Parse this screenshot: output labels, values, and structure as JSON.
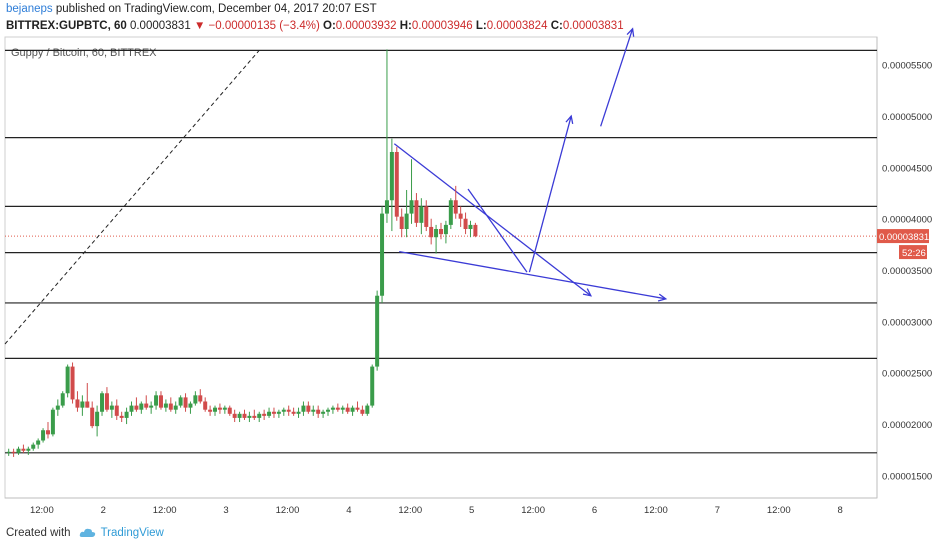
{
  "header": {
    "author": "bejaneps",
    "published_text": "published on TradingView.com, December 04, 2017 20:07 EST",
    "symbol_line": "BITTREX:GUPBTC, 60",
    "last_price": "0.00003831",
    "change": "−0.00000135 (−3.4%)",
    "o_label": "O:",
    "o_value": "0.00003932",
    "h_label": "H:",
    "h_value": "0.00003946",
    "l_label": "L:",
    "l_value": "0.00003824",
    "c_label": "C:",
    "c_value": "0.00003831"
  },
  "chart_title": "Guppy / Bitcoin, 60, BITTREX",
  "footer": {
    "created_with": "Created with",
    "brand": "TradingView"
  },
  "colors": {
    "up": "#3a9c4a",
    "down": "#d14b4b",
    "draw": "#3b3bd6",
    "line": "#222222",
    "price_tag": "#e05a4a",
    "countdown_tag": "#e05a4a"
  },
  "chart_data": {
    "type": "candlestick",
    "title": "Guppy / Bitcoin, 60, BITTREX",
    "x_tick_labels": [
      "12:00",
      "2",
      "12:00",
      "3",
      "12:00",
      "4",
      "12:00",
      "5",
      "12:00",
      "6",
      "12:00",
      "7",
      "12:00",
      "8"
    ],
    "y_tick_labels": [
      "0.00001500",
      "0.00002000",
      "0.00002500",
      "0.00003000",
      "0.00003500",
      "0.00004000",
      "0.00004500",
      "0.00005000",
      "0.00005500"
    ],
    "y_range": [
      1.28e-05,
      5.77e-05
    ],
    "x_range_days": [
      1.2,
      8.3
    ],
    "current_price_label": "0.00003831",
    "countdown_label": "52:26",
    "horizontal_levels": [
      1.72e-05,
      2.64e-05,
      3.18e-05,
      3.67e-05,
      4.12e-05,
      4.79e-05,
      5.64e-05
    ],
    "candles": [
      [
        1.23,
        1.73e-05,
        1.76e-05,
        1.69e-05,
        1.73e-05
      ],
      [
        1.27,
        1.73e-05,
        1.76e-05,
        1.68e-05,
        1.72e-05
      ],
      [
        1.31,
        1.72e-05,
        1.78e-05,
        1.7e-05,
        1.76e-05
      ],
      [
        1.35,
        1.76e-05,
        1.8e-05,
        1.72e-05,
        1.74e-05
      ],
      [
        1.39,
        1.74e-05,
        1.78e-05,
        1.7e-05,
        1.76e-05
      ],
      [
        1.43,
        1.76e-05,
        1.82e-05,
        1.74e-05,
        1.8e-05
      ],
      [
        1.47,
        1.8e-05,
        1.86e-05,
        1.76e-05,
        1.84e-05
      ],
      [
        1.51,
        1.84e-05,
        1.96e-05,
        1.82e-05,
        1.94e-05
      ],
      [
        1.55,
        1.94e-05,
        2.02e-05,
        1.86e-05,
        1.9e-05
      ],
      [
        1.59,
        1.9e-05,
        2.16e-05,
        1.88e-05,
        2.14e-05
      ],
      [
        1.63,
        2.14e-05,
        2.24e-05,
        2.08e-05,
        2.18e-05
      ],
      [
        1.67,
        2.18e-05,
        2.32e-05,
        2.16e-05,
        2.3e-05
      ],
      [
        1.71,
        2.3e-05,
        2.58e-05,
        2.26e-05,
        2.56e-05
      ],
      [
        1.75,
        2.56e-05,
        2.6e-05,
        2.2e-05,
        2.24e-05
      ],
      [
        1.79,
        2.24e-05,
        2.32e-05,
        2.12e-05,
        2.16e-05
      ],
      [
        1.83,
        2.16e-05,
        2.28e-05,
        2.08e-05,
        2.22e-05
      ],
      [
        1.87,
        2.22e-05,
        2.4e-05,
        2.16e-05,
        2.16e-05
      ],
      [
        1.91,
        2.16e-05,
        2.22e-05,
        1.96e-05,
        1.98e-05
      ],
      [
        1.95,
        1.98e-05,
        2.18e-05,
        1.88e-05,
        2.12e-05
      ],
      [
        1.99,
        2.12e-05,
        2.32e-05,
        2.08e-05,
        2.3e-05
      ],
      [
        2.03,
        2.3e-05,
        2.36e-05,
        2.12e-05,
        2.14e-05
      ],
      [
        2.07,
        2.14e-05,
        2.22e-05,
        2.06e-05,
        2.18e-05
      ],
      [
        2.11,
        2.18e-05,
        2.24e-05,
        2.04e-05,
        2.08e-05
      ],
      [
        2.15,
        2.08e-05,
        2.12e-05,
        2.02e-05,
        2.06e-05
      ],
      [
        2.19,
        2.06e-05,
        2.16e-05,
        2e-05,
        2.12e-05
      ],
      [
        2.23,
        2.12e-05,
        2.22e-05,
        2.08e-05,
        2.18e-05
      ],
      [
        2.27,
        2.18e-05,
        2.26e-05,
        2.12e-05,
        2.14e-05
      ],
      [
        2.31,
        2.14e-05,
        2.22e-05,
        2.1e-05,
        2.2e-05
      ],
      [
        2.35,
        2.2e-05,
        2.28e-05,
        2.14e-05,
        2.16e-05
      ],
      [
        2.39,
        2.16e-05,
        2.22e-05,
        2.1e-05,
        2.18e-05
      ],
      [
        2.43,
        2.18e-05,
        2.32e-05,
        2.14e-05,
        2.28e-05
      ],
      [
        2.47,
        2.28e-05,
        2.32e-05,
        2.14e-05,
        2.16e-05
      ],
      [
        2.51,
        2.16e-05,
        2.24e-05,
        2.12e-05,
        2.2e-05
      ],
      [
        2.55,
        2.2e-05,
        2.26e-05,
        2.12e-05,
        2.14e-05
      ],
      [
        2.59,
        2.14e-05,
        2.22e-05,
        2.1e-05,
        2.18e-05
      ],
      [
        2.63,
        2.18e-05,
        2.28e-05,
        2.16e-05,
        2.26e-05
      ],
      [
        2.67,
        2.26e-05,
        2.3e-05,
        2.12e-05,
        2.16e-05
      ],
      [
        2.71,
        2.16e-05,
        2.22e-05,
        2.1e-05,
        2.2e-05
      ],
      [
        2.75,
        2.2e-05,
        2.32e-05,
        2.18e-05,
        2.28e-05
      ],
      [
        2.79,
        2.28e-05,
        2.34e-05,
        2.2e-05,
        2.22e-05
      ],
      [
        2.83,
        2.22e-05,
        2.26e-05,
        2.12e-05,
        2.14e-05
      ],
      [
        2.87,
        2.14e-05,
        2.18e-05,
        2.08e-05,
        2.12e-05
      ],
      [
        2.91,
        2.12e-05,
        2.18e-05,
        2.08e-05,
        2.16e-05
      ],
      [
        2.95,
        2.16e-05,
        2.2e-05,
        2.1e-05,
        2.14e-05
      ],
      [
        2.99,
        2.14e-05,
        2.18e-05,
        2.1e-05,
        2.16e-05
      ],
      [
        3.03,
        2.16e-05,
        2.18e-05,
        2.08e-05,
        2.1e-05
      ],
      [
        3.07,
        2.1e-05,
        2.14e-05,
        2.02e-05,
        2.06e-05
      ],
      [
        3.11,
        2.06e-05,
        2.12e-05,
        2.02e-05,
        2.1e-05
      ],
      [
        3.15,
        2.1e-05,
        2.14e-05,
        2.04e-05,
        2.06e-05
      ],
      [
        3.19,
        2.06e-05,
        2.12e-05,
        2.02e-05,
        2.08e-05
      ],
      [
        3.23,
        2.08e-05,
        2.14e-05,
        2.04e-05,
        2.06e-05
      ],
      [
        3.27,
        2.06e-05,
        2.12e-05,
        2.02e-05,
        2.1e-05
      ],
      [
        3.31,
        2.1e-05,
        2.14e-05,
        2.04e-05,
        2.08e-05
      ],
      [
        3.35,
        2.08e-05,
        2.16e-05,
        2.06e-05,
        2.12e-05
      ],
      [
        3.39,
        2.12e-05,
        2.16e-05,
        2.06e-05,
        2.1e-05
      ],
      [
        3.43,
        2.1e-05,
        2.14e-05,
        2.06e-05,
        2.12e-05
      ],
      [
        3.47,
        2.12e-05,
        2.16e-05,
        2.08e-05,
        2.14e-05
      ],
      [
        3.51,
        2.14e-05,
        2.18e-05,
        2.08e-05,
        2.12e-05
      ],
      [
        3.55,
        2.12e-05,
        2.16e-05,
        2.08e-05,
        2.1e-05
      ],
      [
        3.59,
        2.1e-05,
        2.16e-05,
        2.06e-05,
        2.12e-05
      ],
      [
        3.63,
        2.12e-05,
        2.22e-05,
        2.08e-05,
        2.18e-05
      ],
      [
        3.67,
        2.18e-05,
        2.22e-05,
        2.1e-05,
        2.12e-05
      ],
      [
        3.71,
        2.12e-05,
        2.18e-05,
        2.08e-05,
        2.14e-05
      ],
      [
        3.75,
        2.14e-05,
        2.18e-05,
        2.06e-05,
        2.1e-05
      ],
      [
        3.79,
        2.1e-05,
        2.14e-05,
        2.06e-05,
        2.12e-05
      ],
      [
        3.83,
        2.12e-05,
        2.16e-05,
        2.08e-05,
        2.14e-05
      ],
      [
        3.87,
        2.14e-05,
        2.18e-05,
        2.1e-05,
        2.16e-05
      ],
      [
        3.91,
        2.16e-05,
        2.2e-05,
        2.12e-05,
        2.14e-05
      ],
      [
        3.95,
        2.14e-05,
        2.18e-05,
        2.1e-05,
        2.16e-05
      ],
      [
        3.99,
        2.16e-05,
        2.2e-05,
        2.1e-05,
        2.12e-05
      ],
      [
        4.03,
        2.12e-05,
        2.18e-05,
        2.08e-05,
        2.16e-05
      ],
      [
        4.07,
        2.16e-05,
        2.22e-05,
        2.12e-05,
        2.14e-05
      ],
      [
        4.11,
        2.14e-05,
        2.18e-05,
        2.08e-05,
        2.1e-05
      ],
      [
        4.15,
        2.1e-05,
        2.2e-05,
        2.08e-05,
        2.18e-05
      ],
      [
        4.19,
        2.18e-05,
        2.58e-05,
        2.16e-05,
        2.56e-05
      ],
      [
        4.23,
        2.56e-05,
        3.3e-05,
        2.52e-05,
        3.25e-05
      ],
      [
        4.27,
        3.25e-05,
        4.12e-05,
        3.18e-05,
        4.05e-05
      ],
      [
        4.31,
        4.05e-05,
        5.65e-05,
        3.96e-05,
        4.18e-05
      ],
      [
        4.35,
        4.18e-05,
        4.78e-05,
        3.88e-05,
        4.65e-05
      ],
      [
        4.39,
        4.65e-05,
        4.7e-05,
        3.98e-05,
        4.02e-05
      ],
      [
        4.43,
        4.02e-05,
        4.1e-05,
        3.82e-05,
        3.9e-05
      ],
      [
        4.47,
        3.9e-05,
        4.28e-05,
        3.82e-05,
        4.05e-05
      ],
      [
        4.51,
        4.05e-05,
        4.58e-05,
        3.95e-05,
        4.18e-05
      ],
      [
        4.55,
        4.18e-05,
        4.25e-05,
        3.92e-05,
        3.96e-05
      ],
      [
        4.59,
        3.96e-05,
        4.2e-05,
        3.85e-05,
        4.12e-05
      ],
      [
        4.63,
        4.12e-05,
        4.18e-05,
        3.88e-05,
        3.92e-05
      ],
      [
        4.67,
        3.92e-05,
        4e-05,
        3.75e-05,
        3.82e-05
      ],
      [
        4.71,
        3.82e-05,
        3.94e-05,
        3.66e-05,
        3.9e-05
      ],
      [
        4.75,
        3.9e-05,
        3.96e-05,
        3.8e-05,
        3.85e-05
      ],
      [
        4.79,
        3.85e-05,
        3.98e-05,
        3.76e-05,
        3.94e-05
      ],
      [
        4.83,
        3.94e-05,
        4.2e-05,
        3.9e-05,
        4.18e-05
      ],
      [
        4.87,
        4.18e-05,
        4.32e-05,
        4e-05,
        4.05e-05
      ],
      [
        4.91,
        4.05e-05,
        4.12e-05,
        3.92e-05,
        4e-05
      ],
      [
        4.95,
        4e-05,
        4.06e-05,
        3.85e-05,
        3.9e-05
      ],
      [
        4.99,
        3.9e-05,
        3.98e-05,
        3.82e-05,
        3.94e-05
      ],
      [
        5.03,
        3.94e-05,
        3.96e-05,
        3.82e-05,
        3.83e-05
      ]
    ],
    "drawings": {
      "dashed_trend": [
        [
          1.2,
          2.78e-05
        ],
        [
          3.27,
          5.64e-05
        ]
      ],
      "upper_wedge_line": [
        [
          4.37,
          4.73e-05
        ],
        [
          5.97,
          3.25e-05
        ]
      ],
      "lower_wedge_line": [
        [
          4.41,
          3.68e-05
        ],
        [
          6.58,
          3.22e-05
        ]
      ],
      "short_down_line": [
        [
          4.97,
          4.29e-05
        ],
        [
          5.45,
          3.48e-05
        ]
      ],
      "arrow_up_1": [
        [
          5.47,
          3.48e-05
        ],
        [
          5.81,
          5e-05
        ]
      ],
      "arrow_up_2": [
        [
          6.05,
          4.9e-05
        ],
        [
          6.31,
          5.85e-05
        ]
      ]
    }
  }
}
